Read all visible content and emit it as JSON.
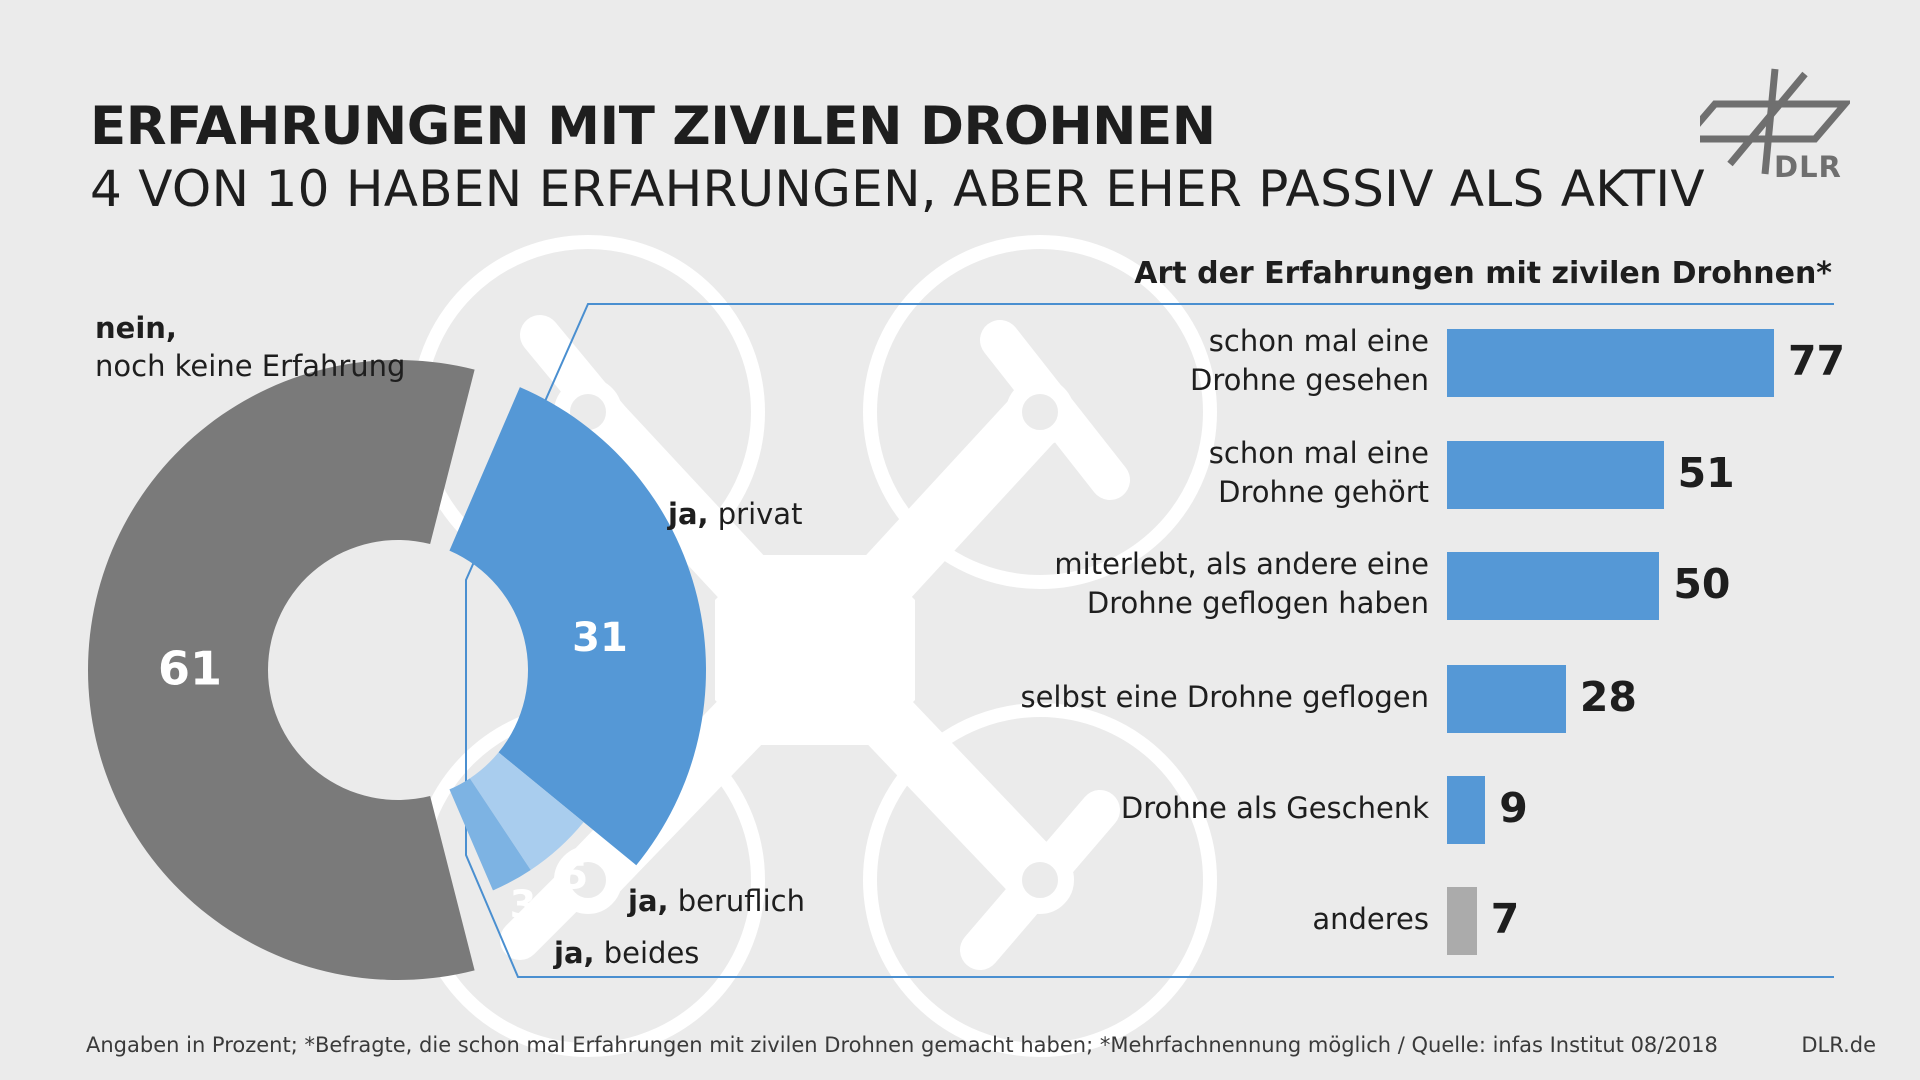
{
  "header": {
    "title": "ERFAHRUNGEN MIT ZIVILEN DROHNEN",
    "subtitle": "4 VON 10 HABEN ERFAHRUNGEN, ABER EHER PASSIV ALS AKTIV"
  },
  "logo": {
    "text": "DLR",
    "icon": "dlr-cross-icon"
  },
  "donut": {
    "no_label_bold": "nein,",
    "no_label_rest": "noch keine Erfahrung",
    "private_bold": "ja,",
    "private_rest": " privat",
    "work_bold": "ja,",
    "work_rest": " beruflich",
    "both_bold": "ja,",
    "both_rest": " beides"
  },
  "colors": {
    "no": "#7a7a7a",
    "private": "#5598d6",
    "work": "#a9cdee",
    "both": "#7db3e3",
    "bar_blue": "#5598d6",
    "bar_gray": "#ababab",
    "line_blue": "#4a8fd0"
  },
  "chart_data": [
    {
      "type": "pie",
      "categories": [
        "nein, noch keine Erfahrung",
        "ja, privat",
        "ja, beruflich",
        "ja, beides"
      ],
      "values": [
        61,
        31,
        5,
        3
      ],
      "value_labels": [
        "61",
        "31",
        "5",
        "3"
      ]
    },
    {
      "type": "bar",
      "title": "Art der Erfahrungen mit zivilen Drohnen*",
      "categories": [
        [
          "schon mal eine",
          "Drohne gesehen"
        ],
        [
          "schon mal eine",
          "Drohne gehört"
        ],
        [
          "miterlebt, als andere eine",
          "Drohne geflogen haben"
        ],
        [
          "selbst eine Drohne geflogen"
        ],
        [
          "Drohne als Geschenk"
        ],
        [
          "anderes"
        ]
      ],
      "values": [
        77,
        51,
        50,
        28,
        9,
        7
      ],
      "value_labels": [
        "77",
        "51",
        "50",
        "28",
        "9",
        "7"
      ],
      "highlight_gray_last": true
    }
  ],
  "footer": {
    "note": "Angaben in Prozent; *Befragte, die schon mal Erfahrungen mit zivilen Drohnen gemacht haben; *Mehrfachnennung möglich / Quelle: infas Institut 08/2018",
    "site": "DLR.de"
  }
}
